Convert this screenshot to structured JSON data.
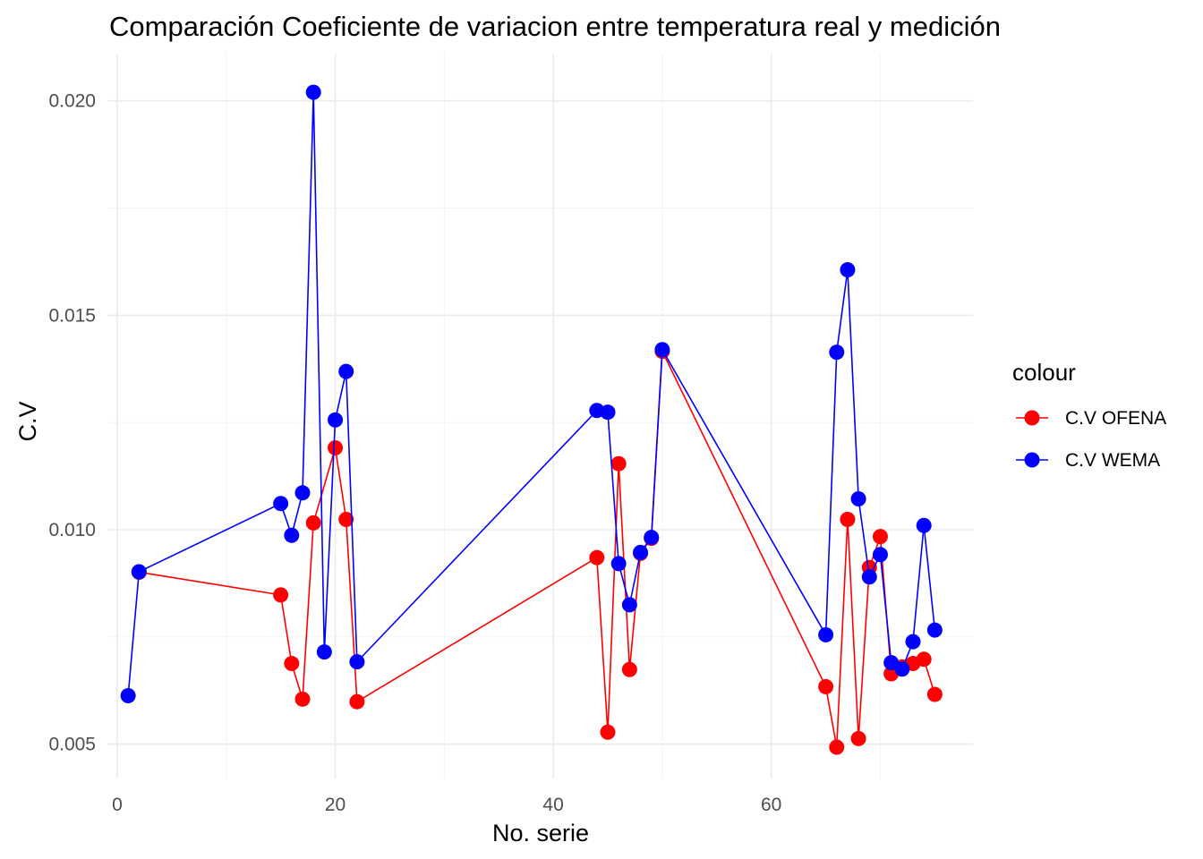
{
  "chart_data": {
    "type": "line",
    "title": "Comparación Coeficiente de variacion entre  temperatura real y medición",
    "xlabel": "No. serie",
    "ylabel": "C.V",
    "xlim": [
      -0.9,
      78.5
    ],
    "ylim": [
      0.0042,
      0.0211
    ],
    "x_ticks": [
      0,
      20,
      40,
      60
    ],
    "x_tick_labels": [
      "0",
      "20",
      "40",
      "60"
    ],
    "y_ticks": [
      0.005,
      0.01,
      0.015,
      0.02
    ],
    "y_tick_labels": [
      "0.005",
      "0.010",
      "0.015",
      "0.020"
    ],
    "grid": true,
    "legend": {
      "title": "colour",
      "position": "right"
    },
    "series": [
      {
        "name": "C.V OFENA",
        "color": "#ff0000",
        "points": [
          [
            2,
            0.00901
          ],
          [
            15,
            0.00848
          ],
          [
            16,
            0.00688
          ],
          [
            17,
            0.00605
          ],
          [
            18,
            0.01016
          ],
          [
            20,
            0.01191
          ],
          [
            21,
            0.01024
          ],
          [
            22,
            0.00599
          ],
          [
            44,
            0.00935
          ],
          [
            45,
            0.00528
          ],
          [
            46,
            0.01154
          ],
          [
            47,
            0.00674
          ],
          [
            48,
            0.00945
          ],
          [
            49,
            0.0098
          ],
          [
            50,
            0.01416
          ],
          [
            65,
            0.00634
          ],
          [
            66,
            0.00493
          ],
          [
            67,
            0.01024
          ],
          [
            68,
            0.00513
          ],
          [
            69,
            0.00912
          ],
          [
            70,
            0.00984
          ],
          [
            71,
            0.00664
          ],
          [
            72,
            0.0068
          ],
          [
            73,
            0.00688
          ],
          [
            74,
            0.00698
          ],
          [
            75,
            0.00616
          ]
        ]
      },
      {
        "name": "C.V WEMA",
        "color": "#0000ff",
        "points": [
          [
            1,
            0.00613
          ],
          [
            2,
            0.00902
          ],
          [
            15,
            0.01061
          ],
          [
            16,
            0.00987
          ],
          [
            17,
            0.01086
          ],
          [
            18,
            0.0202
          ],
          [
            19,
            0.00715
          ],
          [
            20,
            0.01256
          ],
          [
            21,
            0.01369
          ],
          [
            22,
            0.00692
          ],
          [
            44,
            0.01278
          ],
          [
            45,
            0.01274
          ],
          [
            46,
            0.00921
          ],
          [
            47,
            0.00825
          ],
          [
            48,
            0.00947
          ],
          [
            49,
            0.00982
          ],
          [
            50,
            0.0142
          ],
          [
            65,
            0.00755
          ],
          [
            66,
            0.01414
          ],
          [
            67,
            0.01606
          ],
          [
            68,
            0.01072
          ],
          [
            69,
            0.0089
          ],
          [
            70,
            0.00942
          ],
          [
            71,
            0.0069
          ],
          [
            72,
            0.00675
          ],
          [
            73,
            0.00739
          ],
          [
            74,
            0.0101
          ],
          [
            75,
            0.00766
          ]
        ]
      }
    ]
  }
}
